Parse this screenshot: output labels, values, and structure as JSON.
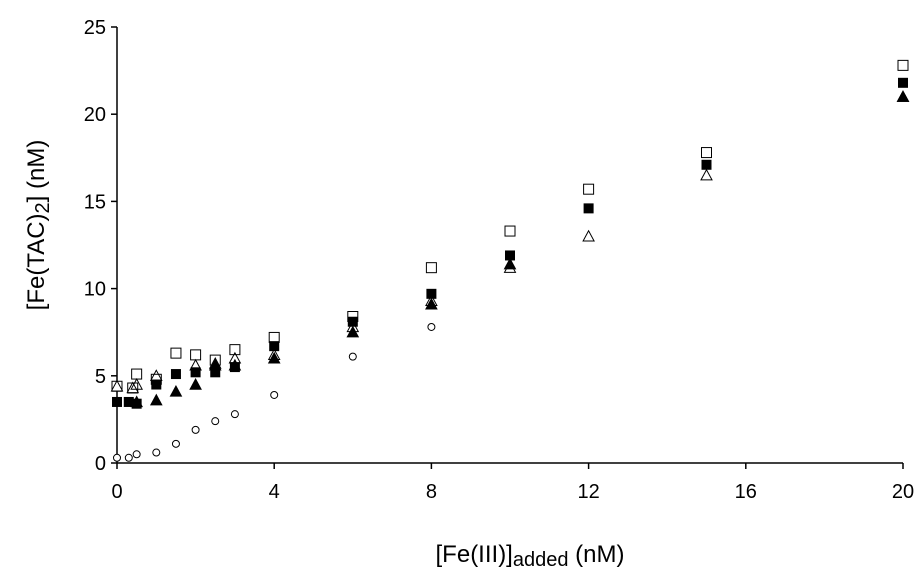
{
  "chart_data": {
    "type": "scatter",
    "title": "",
    "xlabel": {
      "main": "[Fe(III)]",
      "sub": "added",
      "suffix": " (nM)"
    },
    "ylabel": {
      "main": "[Fe(TAC)",
      "sub": "2",
      "suffix": "] (nM)"
    },
    "xlim": [
      0,
      20
    ],
    "ylim": [
      0,
      25
    ],
    "xticks": [
      0,
      4,
      8,
      12,
      16,
      20
    ],
    "yticks": [
      0,
      5,
      10,
      15,
      20,
      25
    ],
    "grid": false,
    "series": [
      {
        "marker": "open-square",
        "color": "#000000",
        "x": [
          0,
          0.4,
          0.5,
          1,
          1.5,
          2,
          2.5,
          3,
          4,
          6,
          8,
          10,
          12,
          15,
          20
        ],
        "y": [
          4.4,
          4.3,
          5.1,
          4.8,
          6.3,
          6.2,
          5.9,
          6.5,
          7.2,
          8.4,
          11.2,
          13.3,
          15.7,
          17.8,
          22.8
        ]
      },
      {
        "marker": "filled-square",
        "color": "#000000",
        "x": [
          0,
          0.3,
          0.5,
          1,
          1.5,
          2,
          2.5,
          3,
          4,
          6,
          8,
          10,
          12,
          15,
          20
        ],
        "y": [
          3.5,
          3.5,
          3.4,
          4.5,
          5.1,
          5.2,
          5.2,
          5.5,
          6.7,
          8.1,
          9.7,
          11.9,
          14.6,
          17.1,
          21.8
        ]
      },
      {
        "marker": "open-triangle",
        "color": "#000000",
        "x": [
          0,
          0.4,
          0.5,
          1,
          2,
          2.5,
          3,
          4,
          6,
          8,
          10,
          12,
          15,
          20
        ],
        "y": [
          4.4,
          4.3,
          4.5,
          5.0,
          5.6,
          5.7,
          6.0,
          6.2,
          7.8,
          9.3,
          11.2,
          13.0,
          16.5,
          21.0
        ]
      },
      {
        "marker": "filled-triangle",
        "color": "#000000",
        "x": [
          0.5,
          1,
          1.5,
          2,
          2.5,
          3,
          4,
          6,
          8,
          10,
          20
        ],
        "y": [
          3.5,
          3.6,
          4.1,
          4.5,
          5.6,
          5.6,
          6.0,
          7.5,
          9.1,
          11.4,
          21.0
        ]
      },
      {
        "marker": "open-circle",
        "color": "#000000",
        "x": [
          0,
          0.3,
          0.5,
          1,
          1.5,
          2,
          2.5,
          3,
          4,
          6,
          8
        ],
        "y": [
          0.3,
          0.3,
          0.5,
          0.6,
          1.1,
          1.9,
          2.4,
          2.8,
          3.9,
          6.1,
          7.8
        ]
      }
    ]
  }
}
